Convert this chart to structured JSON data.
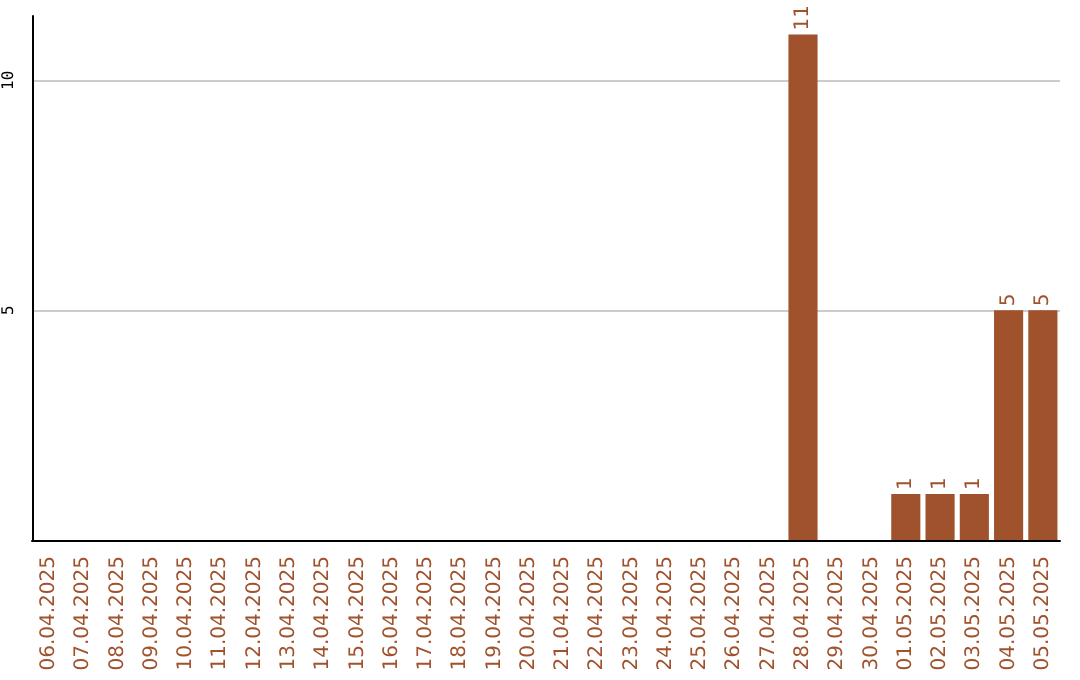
{
  "chart_data": {
    "type": "bar",
    "categories": [
      "06.04.2025",
      "07.04.2025",
      "08.04.2025",
      "09.04.2025",
      "10.04.2025",
      "11.04.2025",
      "12.04.2025",
      "13.04.2025",
      "14.04.2025",
      "15.04.2025",
      "16.04.2025",
      "17.04.2025",
      "18.04.2025",
      "19.04.2025",
      "20.04.2025",
      "21.04.2025",
      "22.04.2025",
      "23.04.2025",
      "24.04.2025",
      "25.04.2025",
      "26.04.2025",
      "27.04.2025",
      "28.04.2025",
      "29.04.2025",
      "30.04.2025",
      "01.05.2025",
      "02.05.2025",
      "03.05.2025",
      "04.05.2025",
      "05.05.2025"
    ],
    "values": [
      0,
      0,
      0,
      0,
      0,
      0,
      0,
      0,
      0,
      0,
      0,
      0,
      0,
      0,
      0,
      0,
      0,
      0,
      0,
      0,
      0,
      0,
      11,
      0,
      0,
      1,
      1,
      1,
      5,
      5
    ],
    "value_labels": [
      null,
      null,
      null,
      null,
      null,
      null,
      null,
      null,
      null,
      null,
      null,
      null,
      null,
      null,
      null,
      null,
      null,
      null,
      null,
      null,
      null,
      null,
      "11",
      null,
      null,
      "1",
      "1",
      "1",
      "5",
      "5"
    ],
    "color": "#a0522d",
    "ylim": [
      0,
      11.4
    ],
    "yticks": [
      5,
      10
    ],
    "grid": "y"
  }
}
